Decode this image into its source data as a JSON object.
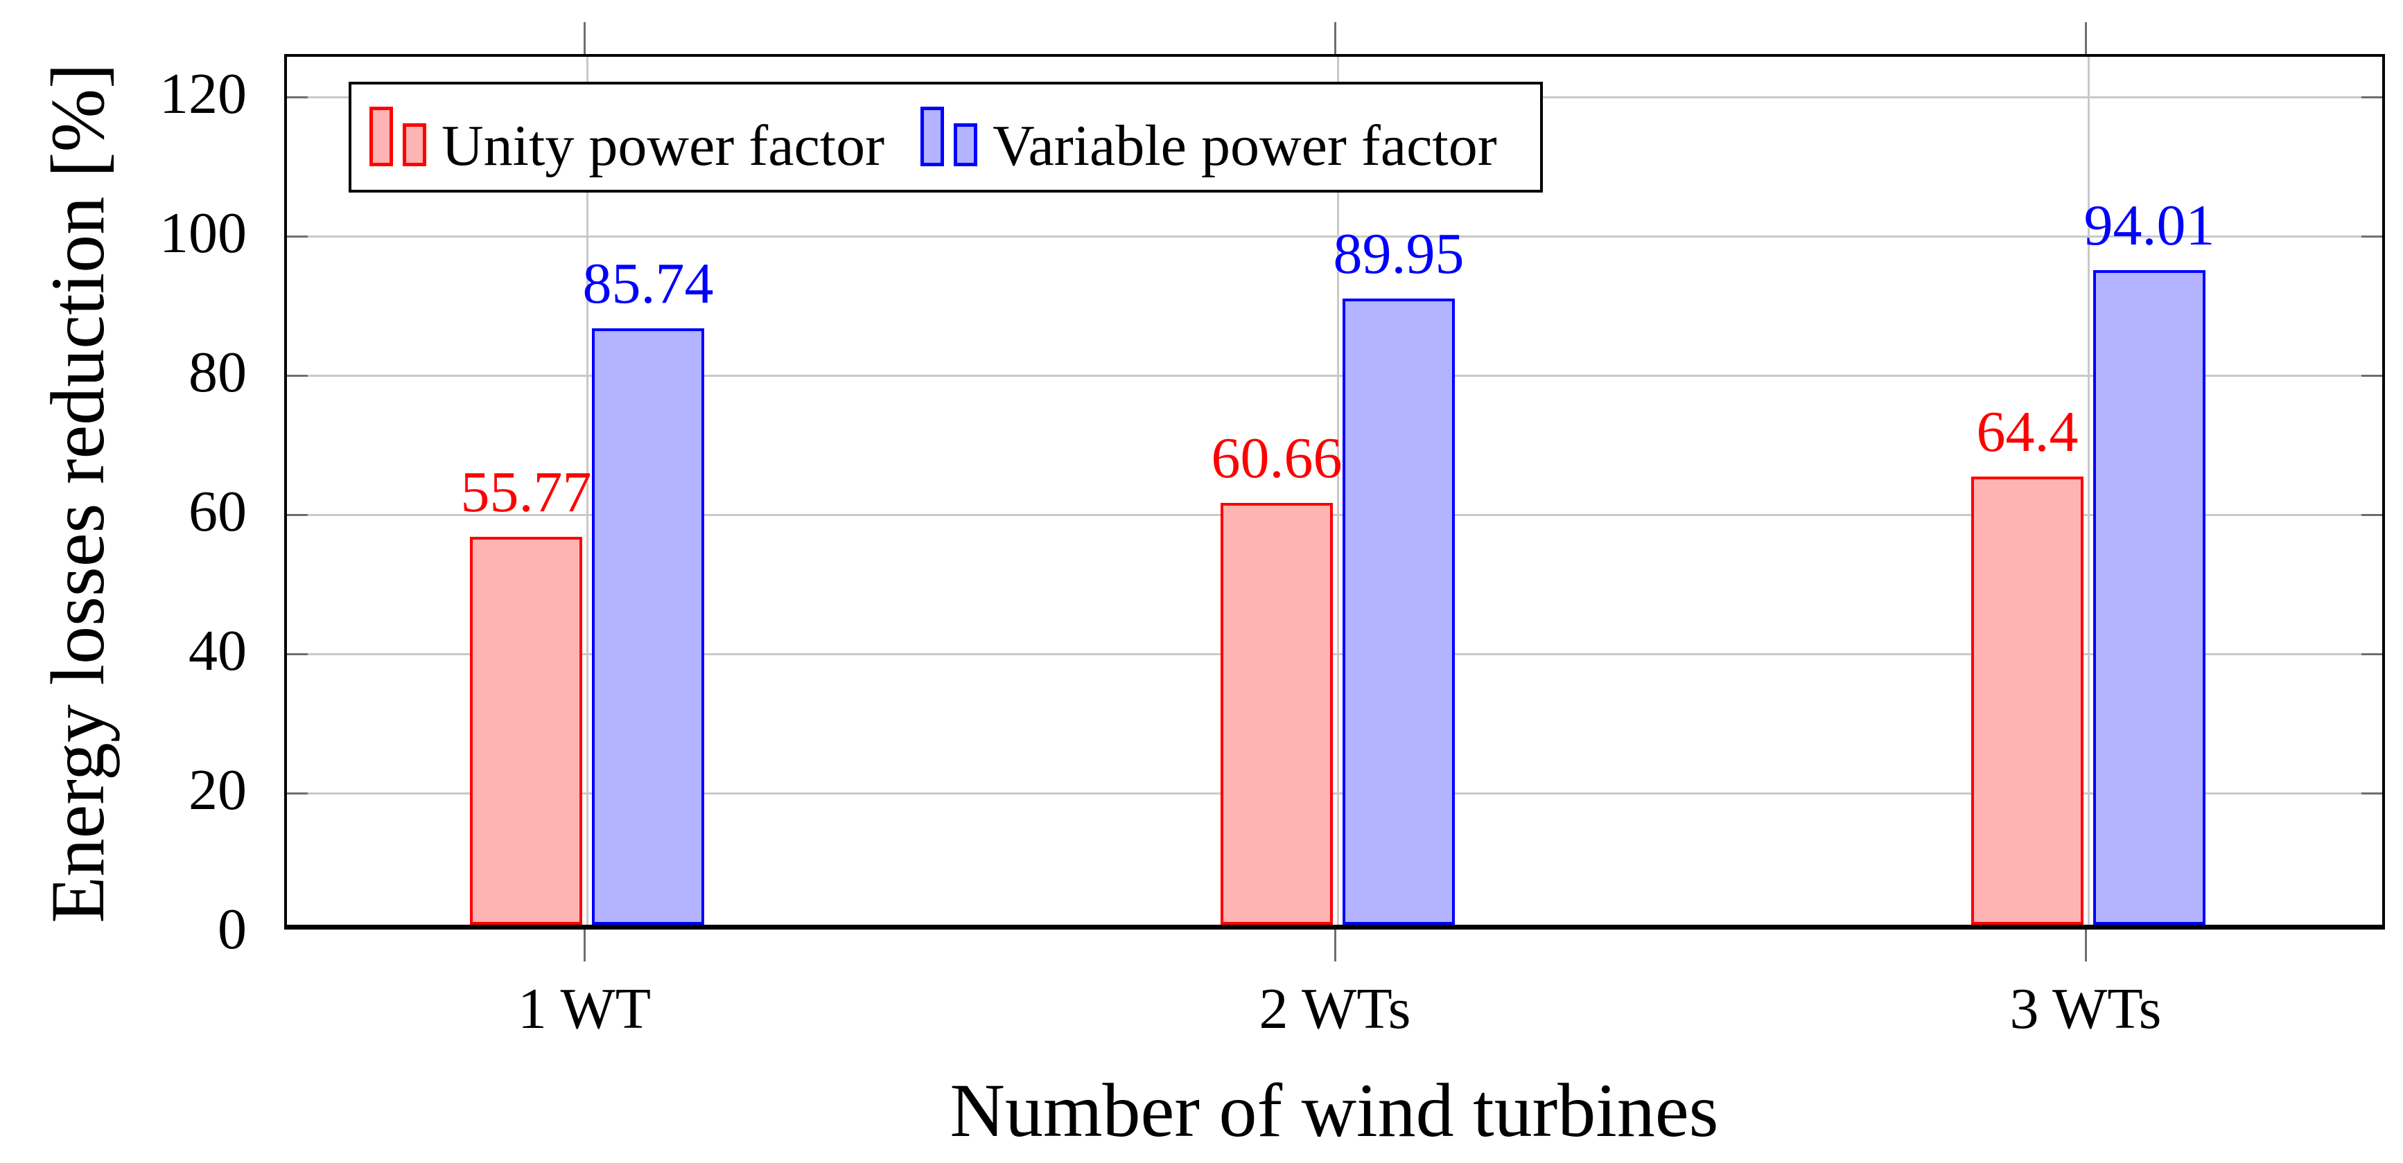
{
  "figure": {
    "background": "#ffffff"
  },
  "chart_data": {
    "type": "bar",
    "title": "",
    "categories": [
      "1 WT",
      "2 WTs",
      "3 WTs"
    ],
    "series": [
      {
        "name": "Unity power factor",
        "values": [
          55.77,
          60.66,
          64.4
        ],
        "fill_color": "#ffb3b3",
        "edge_color": "#ff0000"
      },
      {
        "name": "Variable power factor",
        "values": [
          85.74,
          89.95,
          94.01
        ],
        "fill_color": "#b3b3ff",
        "edge_color": "#0000ff"
      }
    ],
    "xlabel": "Number of wind turbines",
    "ylabel": "Energy losses reduction [%]",
    "yticks": [
      0,
      20,
      40,
      60,
      80,
      100,
      120
    ],
    "ylim": [
      0,
      125.8
    ],
    "grid": true,
    "value_labels": true,
    "legend_position": "top-left",
    "colors": {
      "grid": "#c9c9c9",
      "tick_mark": "#6e6e6e",
      "axis_frame": "#000000",
      "text": "#000000"
    }
  }
}
